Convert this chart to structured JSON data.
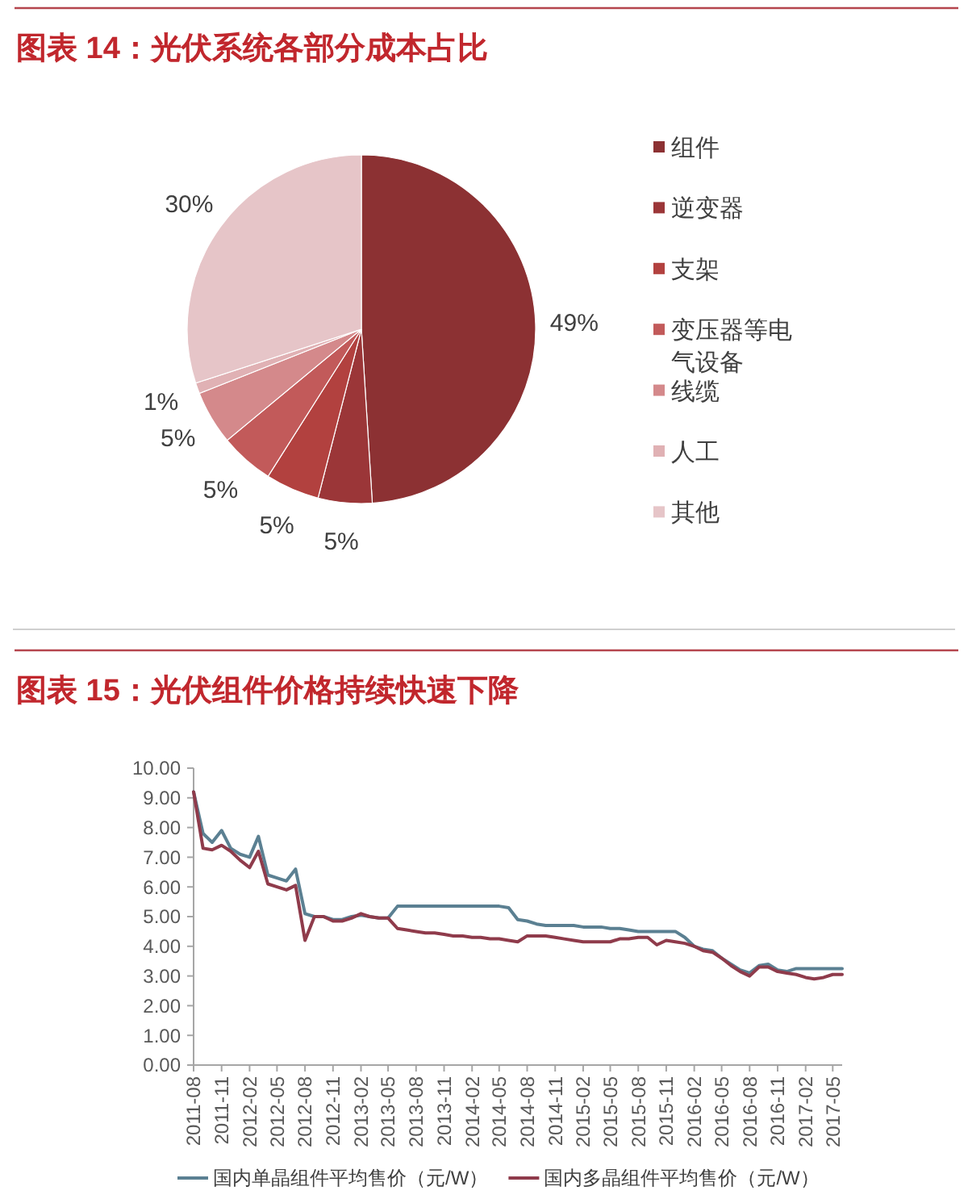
{
  "chart_data": [
    {
      "type": "pie",
      "title": "图表 14：光伏系统各部分成本占比",
      "categories": [
        "组件",
        "逆变器",
        "支架",
        "变压器等电气设备",
        "线缆",
        "人工",
        "其他"
      ],
      "values": [
        49,
        5,
        5,
        5,
        5,
        1,
        30
      ],
      "colors": [
        "#8c3133",
        "#9b3638",
        "#b2413f",
        "#c25a5a",
        "#d4898b",
        "#e0b1b4",
        "#e6c5c8"
      ],
      "value_labels": [
        "49%",
        "5%",
        "5%",
        "5%",
        "5%",
        "1%",
        "30%"
      ],
      "legend": "right"
    },
    {
      "type": "line",
      "title": "图表 15：光伏组件价格持续快速下降",
      "x": [
        "2011-08",
        "2011-09",
        "2011-10",
        "2011-11",
        "2011-12",
        "2012-01",
        "2012-02",
        "2012-03",
        "2012-04",
        "2012-05",
        "2012-06",
        "2012-07",
        "2012-08",
        "2012-09",
        "2012-10",
        "2012-11",
        "2012-12",
        "2013-01",
        "2013-02",
        "2013-03",
        "2013-04",
        "2013-05",
        "2013-06",
        "2013-07",
        "2013-08",
        "2013-09",
        "2013-10",
        "2013-11",
        "2013-12",
        "2014-01",
        "2014-02",
        "2014-03",
        "2014-04",
        "2014-05",
        "2014-06",
        "2014-07",
        "2014-08",
        "2014-09",
        "2014-10",
        "2014-11",
        "2014-12",
        "2015-01",
        "2015-02",
        "2015-03",
        "2015-04",
        "2015-05",
        "2015-06",
        "2015-07",
        "2015-08",
        "2015-09",
        "2015-10",
        "2015-11",
        "2015-12",
        "2016-01",
        "2016-02",
        "2016-03",
        "2016-04",
        "2016-05",
        "2016-06",
        "2016-07",
        "2016-08",
        "2016-09",
        "2016-10",
        "2016-11",
        "2016-12",
        "2017-01",
        "2017-02",
        "2017-03",
        "2017-04",
        "2017-05",
        "2017-06"
      ],
      "series": [
        {
          "name": "国内单晶组件平均售价（元/W）",
          "color": "#5b8092",
          "values": [
            9.2,
            7.8,
            7.5,
            7.9,
            7.3,
            7.1,
            7.0,
            7.7,
            6.4,
            6.3,
            6.2,
            6.6,
            5.1,
            5.0,
            5.0,
            4.9,
            4.9,
            5.0,
            5.05,
            5.0,
            4.95,
            4.95,
            5.35,
            5.35,
            5.35,
            5.35,
            5.35,
            5.35,
            5.35,
            5.35,
            5.35,
            5.35,
            5.35,
            5.35,
            5.3,
            4.9,
            4.85,
            4.75,
            4.7,
            4.7,
            4.7,
            4.7,
            4.65,
            4.65,
            4.65,
            4.6,
            4.6,
            4.55,
            4.5,
            4.5,
            4.5,
            4.5,
            4.5,
            4.3,
            4.0,
            3.9,
            3.85,
            3.6,
            3.4,
            3.2,
            3.1,
            3.35,
            3.4,
            3.2,
            3.15,
            3.25,
            3.25,
            3.25,
            3.25,
            3.25,
            3.25
          ]
        },
        {
          "name": "国内多晶组件平均售价（元/W）",
          "color": "#8f3b4b",
          "values": [
            9.2,
            7.3,
            7.25,
            7.4,
            7.2,
            6.9,
            6.65,
            7.2,
            6.1,
            6.0,
            5.9,
            6.05,
            4.2,
            5.0,
            5.0,
            4.85,
            4.85,
            4.95,
            5.1,
            5.0,
            4.95,
            4.95,
            4.6,
            4.55,
            4.5,
            4.45,
            4.45,
            4.4,
            4.35,
            4.35,
            4.3,
            4.3,
            4.25,
            4.25,
            4.2,
            4.15,
            4.35,
            4.35,
            4.35,
            4.3,
            4.25,
            4.2,
            4.15,
            4.15,
            4.15,
            4.15,
            4.25,
            4.25,
            4.3,
            4.3,
            4.05,
            4.2,
            4.15,
            4.1,
            4.0,
            3.85,
            3.8,
            3.6,
            3.35,
            3.15,
            3.0,
            3.3,
            3.3,
            3.15,
            3.1,
            3.05,
            2.95,
            2.9,
            2.95,
            3.05,
            3.05
          ]
        }
      ],
      "xlim": [
        "2011-08",
        "2017-06"
      ],
      "xticks": [
        "2011-08",
        "2011-11",
        "2012-02",
        "2012-05",
        "2012-08",
        "2012-11",
        "2013-02",
        "2013-05",
        "2013-08",
        "2013-11",
        "2014-02",
        "2014-05",
        "2014-08",
        "2014-11",
        "2015-02",
        "2015-05",
        "2015-08",
        "2015-11",
        "2016-02",
        "2016-05",
        "2016-08",
        "2016-11",
        "2017-02",
        "2017-05"
      ],
      "ylim": [
        0,
        10
      ],
      "yticks": [
        {
          "value": 0,
          "label": "0.00"
        },
        {
          "value": 1,
          "label": "1.00"
        },
        {
          "value": 2,
          "label": "2.00"
        },
        {
          "value": 3,
          "label": "3.00"
        },
        {
          "value": 4,
          "label": "4.00"
        },
        {
          "value": 5,
          "label": "5.00"
        },
        {
          "value": 6,
          "label": "6.00"
        },
        {
          "value": 7,
          "label": "7.00"
        },
        {
          "value": 8,
          "label": "8.00"
        },
        {
          "value": 9,
          "label": "9.00"
        },
        {
          "value": 10,
          "label": "10.00"
        }
      ],
      "legend": "bottom"
    }
  ]
}
